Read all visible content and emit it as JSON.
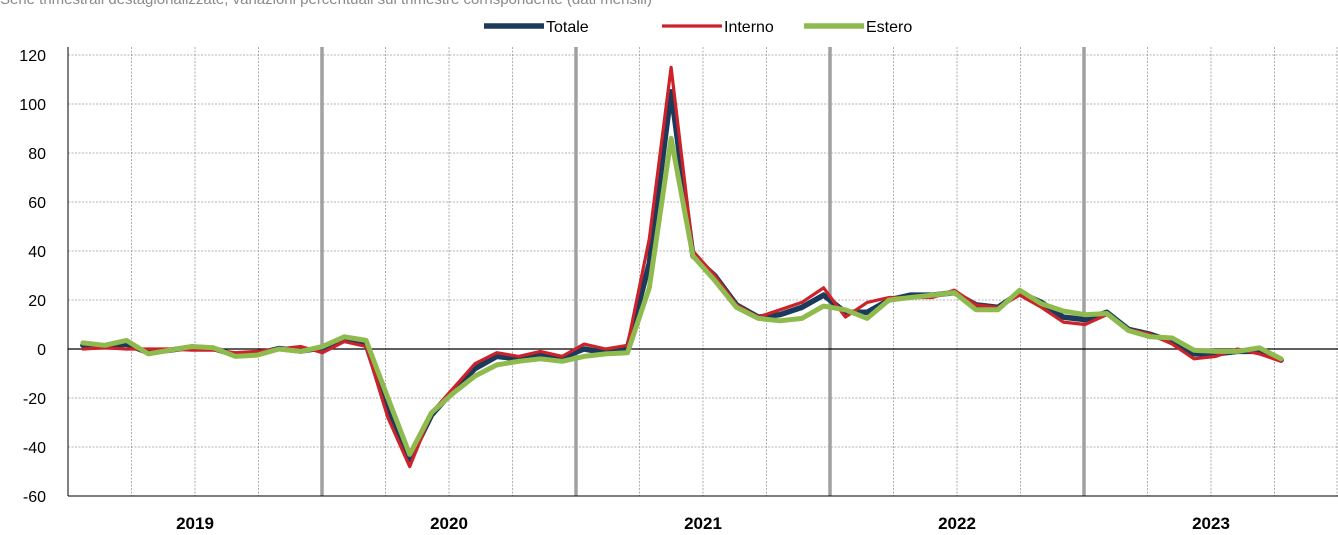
{
  "subtitle": "Serie trimestrali destagionalizzate; variazioni percentuali sul trimestre corrispondente (dati mensili)",
  "chart_data": {
    "type": "line",
    "title": "",
    "xlabel": "",
    "ylabel": "",
    "ylim": [
      -60,
      120
    ],
    "yticks": [
      -60,
      -40,
      -20,
      0,
      20,
      40,
      60,
      80,
      100,
      120
    ],
    "grid": true,
    "legend_position": "top-center",
    "x_start": "2018-07",
    "year_labels": [
      "2019",
      "2020",
      "2021",
      "2022",
      "2023"
    ],
    "series": [
      {
        "name": "Totale",
        "color": "#1b3a5c",
        "values": [
          1.5,
          1.0,
          2.0,
          -1.5,
          -0.5,
          0.8,
          0.2,
          -2.5,
          -2.0,
          0.2,
          -0.8,
          0.5,
          4.0,
          2.0,
          -25.0,
          -45.0,
          -27.0,
          -17.0,
          -8.0,
          -3.0,
          -4.0,
          -2.0,
          -3.5,
          0.0,
          -1.5,
          0.5,
          35.0,
          105.0,
          38.0,
          30.0,
          18.0,
          13.0,
          14.0,
          17.0,
          22.0,
          15.0,
          15.0,
          20.0,
          22.0,
          22.0,
          23.0,
          18.0,
          17.0,
          23.0,
          19.0,
          13.0,
          12.0,
          15.0,
          8.0,
          6.0,
          3.0,
          -2.0,
          -2.0,
          -1.0,
          -1.0,
          -4.5
        ]
      },
      {
        "name": "Interno",
        "color": "#cc2229",
        "values": [
          0.0,
          0.5,
          0.0,
          0.0,
          0.0,
          -0.5,
          -0.5,
          -1.5,
          -1.0,
          0.0,
          1.0,
          -1.5,
          3.0,
          1.0,
          -28.0,
          -48.0,
          -26.0,
          -16.0,
          -6.0,
          -1.5,
          -3.0,
          -1.0,
          -3.0,
          2.0,
          0.0,
          1.5,
          45.0,
          115.0,
          40.0,
          30.0,
          18.0,
          13.0,
          16.0,
          19.0,
          25.0,
          13.0,
          19.0,
          21.0,
          21.0,
          21.0,
          24.0,
          18.0,
          17.0,
          22.0,
          17.0,
          11.0,
          10.0,
          14.0,
          8.0,
          6.0,
          2.0,
          -4.0,
          -3.0,
          0.0,
          -2.0,
          -5.0
        ]
      },
      {
        "name": "Estero",
        "color": "#8fba4e",
        "values": [
          2.5,
          1.5,
          3.5,
          -2.0,
          -0.5,
          1.0,
          0.5,
          -3.0,
          -2.5,
          0.0,
          -1.0,
          1.0,
          5.0,
          3.5,
          -20.0,
          -43.0,
          -26.0,
          -18.0,
          -11.0,
          -6.5,
          -5.0,
          -4.0,
          -5.0,
          -3.0,
          -2.0,
          -1.5,
          25.0,
          86.0,
          38.0,
          28.0,
          17.0,
          12.5,
          11.5,
          12.5,
          17.5,
          16.0,
          12.5,
          20.0,
          21.0,
          22.0,
          23.0,
          16.0,
          16.0,
          24.0,
          18.5,
          15.5,
          14.0,
          14.5,
          7.5,
          5.0,
          4.5,
          -0.5,
          -1.0,
          -1.0,
          0.5,
          -4.0
        ]
      }
    ]
  }
}
